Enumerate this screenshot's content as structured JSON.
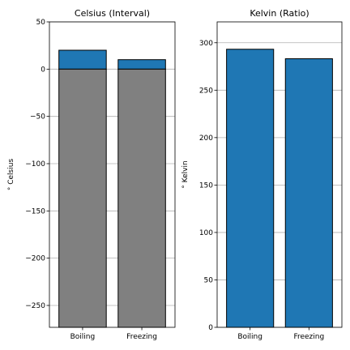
{
  "chart_data": [
    {
      "type": "bar",
      "title": "Celsius (Interval)",
      "ylabel": "$^\\circ$ Celsius",
      "ylabel_display": "° Celsius",
      "categories": [
        "Boiling",
        "Freezing"
      ],
      "ylim": [
        -273.15,
        50
      ],
      "yticks": [
        -250,
        -200,
        -150,
        -100,
        -50,
        0,
        50
      ],
      "ytick_labels": [
        "−250",
        "−200",
        "−150",
        "−100",
        "−50",
        "0",
        "50"
      ],
      "grid": "y",
      "series": [
        {
          "values": [
            20,
            10
          ],
          "color": "#1f77b4"
        },
        {
          "values": [
            -273.15,
            -273.15
          ],
          "base": 0,
          "color": "#808080"
        }
      ]
    },
    {
      "type": "bar",
      "title": "Kelvin (Ratio)",
      "ylabel_display": "° Kelvin",
      "categories": [
        "Boiling",
        "Freezing"
      ],
      "ylim": [
        0,
        322
      ],
      "yticks": [
        0,
        50,
        100,
        150,
        200,
        250,
        300
      ],
      "ytick_labels": [
        "0",
        "50",
        "100",
        "150",
        "200",
        "250",
        "300"
      ],
      "grid": "y",
      "series": [
        {
          "values": [
            293.15,
            283.15
          ],
          "color": "#1f77b4"
        }
      ]
    }
  ]
}
